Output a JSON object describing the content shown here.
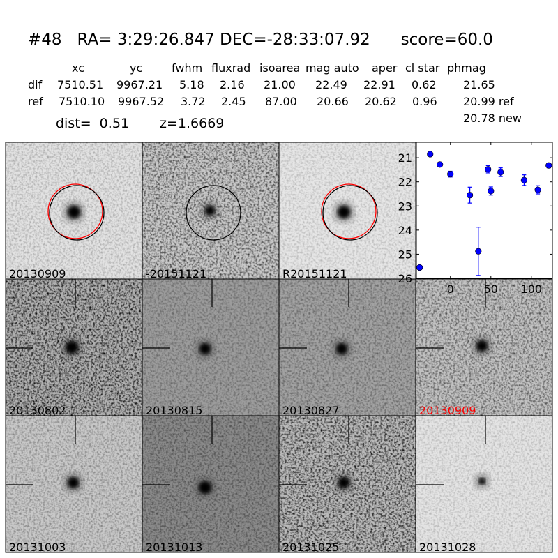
{
  "header": {
    "title": "#48   RA= 3:29:26.847 DEC=-28:33:07.92      score=60.0",
    "columns": [
      "xc",
      "yc",
      "fwhm",
      "fluxrad",
      "isoarea",
      "mag auto",
      "aper",
      "cl star",
      "phmag"
    ],
    "rows": [
      {
        "label": "dif",
        "values": [
          "7510.51",
          "9967.21",
          "5.18",
          "2.16",
          "21.00",
          "22.49",
          "22.91",
          "0.62",
          "21.65"
        ]
      },
      {
        "label": "ref",
        "values": [
          "7510.10",
          "9967.52",
          "3.72",
          "2.45",
          "87.00",
          "20.66",
          "20.62",
          "0.96",
          "20.99 ref"
        ]
      }
    ],
    "phmag_new": "20.78 new",
    "dist": "dist=  0.51",
    "z": "z=1.6669"
  },
  "stamps": [
    {
      "label": "20130909",
      "circle": "red+black"
    },
    {
      "label": "-20151121",
      "circle": "black"
    },
    {
      "label": "R20151121",
      "circle": "red+black"
    },
    {
      "label": "",
      "plot": true
    },
    {
      "label": "20130802"
    },
    {
      "label": "20130815"
    },
    {
      "label": "20130827"
    },
    {
      "label": "20130909",
      "label_color": "#ff0000"
    },
    {
      "label": "20131003"
    },
    {
      "label": "20131013"
    },
    {
      "label": "20131025"
    },
    {
      "label": "20131028"
    }
  ],
  "chart_data": {
    "type": "scatter",
    "marker_color": "#0000ff",
    "x": [
      -38,
      -25,
      -13,
      0,
      24,
      34.5,
      46.5,
      50,
      62,
      91,
      108,
      121.5
    ],
    "y": [
      25.55,
      20.85,
      21.28,
      21.68,
      22.55,
      24.88,
      21.48,
      22.38,
      21.6,
      21.93,
      22.33,
      21.32
    ],
    "yerr": [
      0.08,
      0.03,
      0.04,
      0.12,
      0.33,
      1.0,
      0.15,
      0.17,
      0.18,
      0.22,
      0.17,
      0.1
    ],
    "xlim": [
      -42,
      126
    ],
    "ylim": [
      26,
      20.36
    ],
    "y_inverted": true,
    "xticks": [
      "0",
      "50",
      "100"
    ],
    "yticks": [
      "21",
      "22",
      "23",
      "24",
      "25",
      "26"
    ],
    "grid": false
  }
}
